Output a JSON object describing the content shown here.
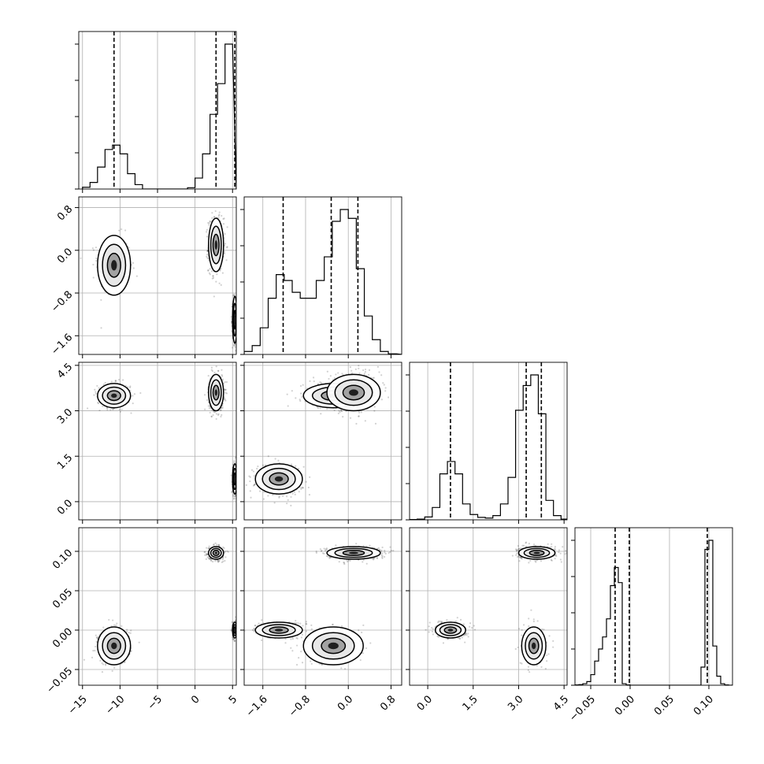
{
  "chart_data": {
    "type": "corner",
    "grid": true,
    "params": [
      {
        "ticks": [
          -15,
          -10,
          -5,
          0,
          5
        ],
        "tick_labels": [
          "−15",
          "−10",
          "−5",
          "0",
          "5"
        ],
        "range": [
          -15.5,
          5.5
        ],
        "hist_bins": [
          -15,
          -14,
          -13,
          -12,
          -11,
          -10,
          -9,
          -8,
          -7,
          -6,
          -5,
          -4,
          -3,
          -2,
          -1,
          0,
          1,
          2,
          3,
          4,
          5
        ],
        "hist_counts": [
          0.04,
          0.15,
          0.5,
          0.9,
          1.0,
          0.8,
          0.35,
          0.1,
          0.0,
          0.0,
          0.0,
          0.0,
          0.0,
          0.0,
          0.03,
          0.25,
          0.8,
          1.7,
          2.4,
          3.3
        ],
        "quantiles": [
          -10.8,
          2.8,
          5.3
        ]
      },
      {
        "ticks": [
          -1.6,
          -0.8,
          0.0,
          0.8
        ],
        "tick_labels": [
          "−1.6",
          "−0.8",
          "0.0",
          "0.8"
        ],
        "range": [
          -1.95,
          1.0
        ],
        "hist_bins": [
          -1.95,
          -1.8,
          -1.65,
          -1.5,
          -1.35,
          -1.2,
          -1.05,
          -0.9,
          -0.75,
          -0.6,
          -0.45,
          -0.3,
          -0.15,
          0.0,
          0.15,
          0.3,
          0.45,
          0.6,
          0.75,
          0.9
        ],
        "hist_counts": [
          0.05,
          0.15,
          0.45,
          0.95,
          1.35,
          1.25,
          1.05,
          0.95,
          0.95,
          1.25,
          1.65,
          2.25,
          2.45,
          2.3,
          1.45,
          0.65,
          0.25,
          0.05,
          0.01
        ],
        "quantiles": [
          -1.22,
          -0.32,
          0.18
        ]
      },
      {
        "ticks": [
          0.0,
          1.5,
          3.0,
          4.5
        ],
        "tick_labels": [
          "0.0",
          "1.5",
          "3.0",
          "4.5"
        ],
        "range": [
          -0.6,
          4.6
        ],
        "hist_bins": [
          -0.6,
          -0.35,
          -0.1,
          0.15,
          0.4,
          0.65,
          0.9,
          1.15,
          1.4,
          1.65,
          1.9,
          2.15,
          2.4,
          2.65,
          2.9,
          3.15,
          3.4,
          3.65,
          3.9,
          4.15,
          4.4,
          4.6
        ],
        "hist_counts": [
          0.01,
          0.02,
          0.08,
          0.35,
          1.3,
          1.65,
          1.3,
          0.45,
          0.15,
          0.07,
          0.05,
          0.12,
          0.45,
          1.2,
          3.1,
          3.8,
          4.1,
          3.0,
          0.55,
          0.12,
          0.02
        ],
        "quantiles": [
          0.75,
          3.25,
          3.75
        ]
      },
      {
        "ticks": [
          -0.05,
          0.0,
          0.05,
          0.1
        ],
        "tick_labels": [
          "−0.05",
          "0.00",
          "0.05",
          "0.10"
        ],
        "range": [
          -0.07,
          0.13
        ],
        "hist_bins": [
          -0.07,
          -0.065,
          -0.06,
          -0.055,
          -0.05,
          -0.045,
          -0.04,
          -0.035,
          -0.03,
          -0.025,
          -0.02,
          -0.015,
          -0.01,
          -0.005,
          0.0,
          0.005,
          0.01,
          0.015,
          0.02,
          0.025,
          0.03,
          0.035,
          0.04,
          0.045,
          0.05,
          0.055,
          0.06,
          0.065,
          0.07,
          0.075,
          0.08,
          0.085,
          0.09,
          0.095,
          0.1,
          0.105,
          0.11,
          0.115,
          0.12,
          0.125,
          0.13
        ],
        "hist_counts": [
          0.01,
          0.02,
          0.05,
          0.12,
          0.35,
          0.8,
          1.2,
          1.6,
          2.2,
          3.3,
          3.9,
          3.4,
          0.05,
          0.01,
          0.0,
          0.0,
          0.0,
          0.0,
          0.0,
          0.0,
          0.0,
          0.0,
          0.0,
          0.0,
          0.0,
          0.0,
          0.0,
          0.0,
          0.0,
          0.0,
          0.0,
          0.0,
          0.6,
          4.5,
          4.8,
          1.3,
          0.3,
          0.05,
          0.01,
          0.0
        ],
        "quantiles": [
          -0.019,
          -0.001,
          0.098
        ]
      }
    ],
    "clusters": [
      {
        "weight": 0.25,
        "mean": [
          -10.8,
          -0.28,
          3.5,
          -0.02
        ],
        "std": [
          1.1,
          0.28,
          0.2,
          0.012
        ]
      },
      {
        "weight": 0.45,
        "mean": [
          2.8,
          0.1,
          3.6,
          0.098
        ],
        "std": [
          0.5,
          0.25,
          0.3,
          0.004
        ]
      },
      {
        "weight": 0.3,
        "mean": [
          5.3,
          -1.3,
          0.75,
          0.0
        ],
        "std": [
          0.15,
          0.22,
          0.25,
          0.005
        ]
      }
    ]
  }
}
